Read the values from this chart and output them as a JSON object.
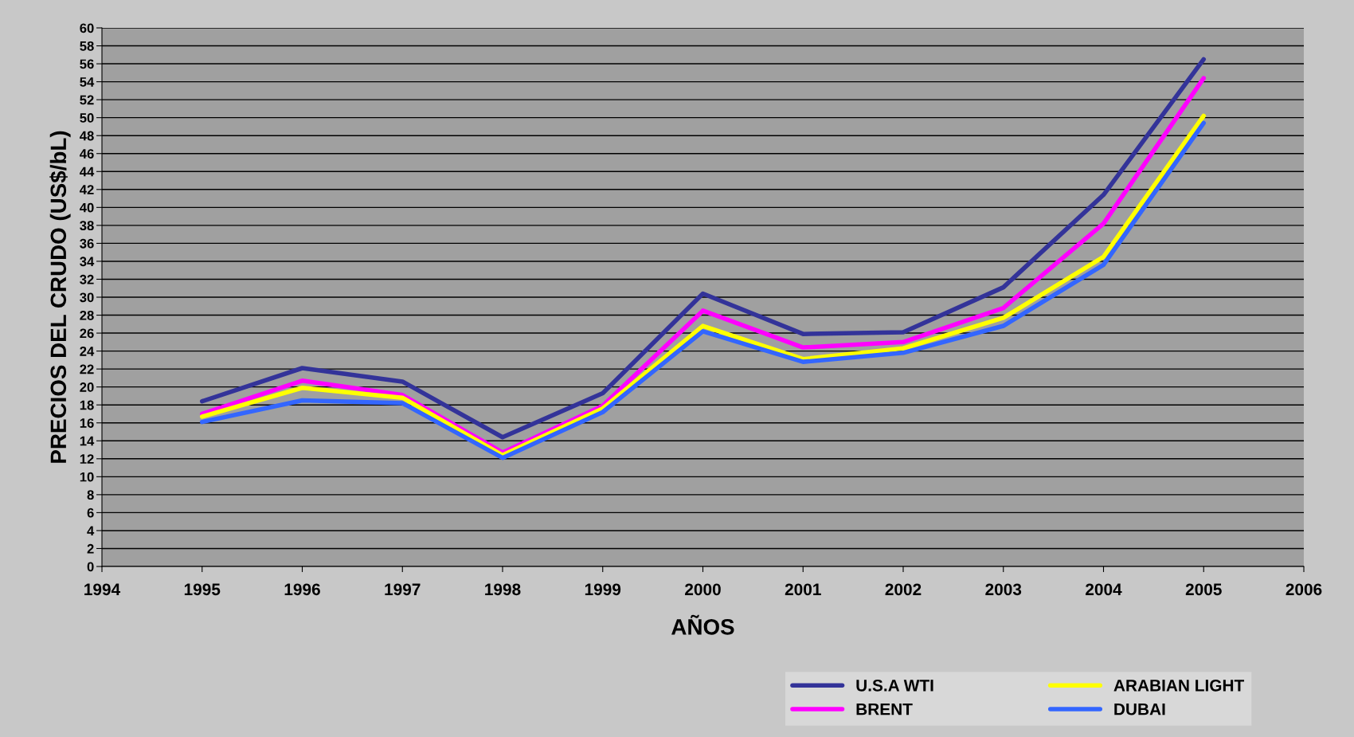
{
  "chart_data": {
    "type": "line",
    "xlabel": "AÑOS",
    "ylabel": "PRECIOS DEL CRUDO (US$/bL)",
    "x": [
      1995,
      1996,
      1997,
      1998,
      1999,
      2000,
      2001,
      2002,
      2003,
      2004,
      2005
    ],
    "series": [
      {
        "name": "U.S.A WTI",
        "color": "#333399",
        "values": [
          18.4,
          22.1,
          20.6,
          14.4,
          19.3,
          30.4,
          25.9,
          26.1,
          31.1,
          41.4,
          56.5
        ]
      },
      {
        "name": "BRENT",
        "color": "#ff00ff",
        "values": [
          17.0,
          20.7,
          19.1,
          12.7,
          17.9,
          28.5,
          24.4,
          25.0,
          28.8,
          38.2,
          54.4
        ]
      },
      {
        "name": "ARABIAN LIGHT",
        "color": "#ffff00",
        "values": [
          16.7,
          19.9,
          18.8,
          12.4,
          17.6,
          26.8,
          23.1,
          24.3,
          27.7,
          34.5,
          50.2
        ]
      },
      {
        "name": "DUBAI",
        "color": "#3366ff",
        "values": [
          16.1,
          18.5,
          18.2,
          12.1,
          17.2,
          26.2,
          22.8,
          23.8,
          26.8,
          33.6,
          49.4
        ]
      }
    ],
    "xlim": [
      1994,
      2006
    ],
    "xticks": [
      1994,
      1995,
      1996,
      1997,
      1998,
      1999,
      2000,
      2001,
      2002,
      2003,
      2004,
      2005,
      2006
    ],
    "ylim": [
      0,
      60
    ],
    "yticks": [
      0,
      2,
      4,
      6,
      8,
      10,
      12,
      14,
      16,
      18,
      20,
      22,
      24,
      26,
      28,
      30,
      32,
      34,
      36,
      38,
      40,
      42,
      44,
      46,
      48,
      50,
      52,
      54,
      56,
      58,
      60
    ],
    "grid": "y",
    "legend": "bottom right",
    "marker": "none",
    "line_style": "solid"
  }
}
